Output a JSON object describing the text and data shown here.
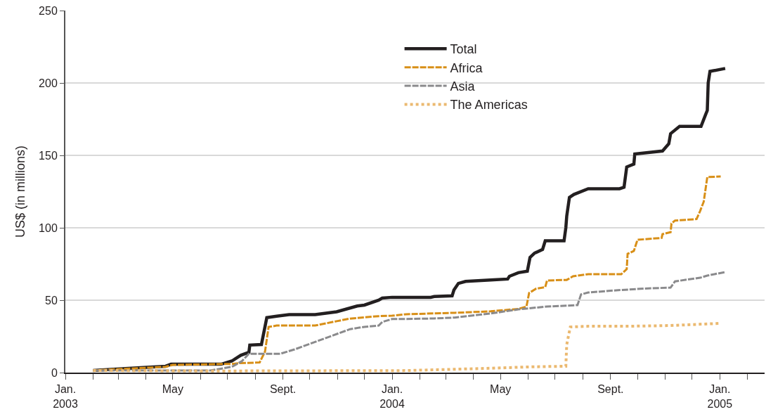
{
  "chart_data": {
    "type": "line",
    "ylabel": "US$ (in millions)",
    "xlim": [
      "2003-01-01",
      "2005-02-20"
    ],
    "ylim": [
      0,
      250
    ],
    "yticks": [
      0,
      50,
      100,
      150,
      200,
      250
    ],
    "xticks": [
      {
        "value": "2003-01-01",
        "label": "Jan.\n2003"
      },
      {
        "value": "2003-02-01",
        "label": null
      },
      {
        "value": "2003-03-01",
        "label": null
      },
      {
        "value": "2003-04-01",
        "label": null
      },
      {
        "value": "2003-05-01",
        "label": "May"
      },
      {
        "value": "2003-06-01",
        "label": null
      },
      {
        "value": "2003-07-01",
        "label": null
      },
      {
        "value": "2003-08-01",
        "label": null
      },
      {
        "value": "2003-09-01",
        "label": "Sept."
      },
      {
        "value": "2003-10-01",
        "label": null
      },
      {
        "value": "2003-11-01",
        "label": null
      },
      {
        "value": "2003-12-01",
        "label": null
      },
      {
        "value": "2004-01-01",
        "label": "Jan.\n2004"
      },
      {
        "value": "2004-02-01",
        "label": null
      },
      {
        "value": "2004-03-01",
        "label": null
      },
      {
        "value": "2004-04-01",
        "label": null
      },
      {
        "value": "2004-05-01",
        "label": "May"
      },
      {
        "value": "2004-06-01",
        "label": null
      },
      {
        "value": "2004-07-01",
        "label": null
      },
      {
        "value": "2004-08-01",
        "label": null
      },
      {
        "value": "2004-09-01",
        "label": "Sept."
      },
      {
        "value": "2004-10-01",
        "label": null
      },
      {
        "value": "2004-11-01",
        "label": null
      },
      {
        "value": "2004-12-01",
        "label": null
      },
      {
        "value": "2005-01-01",
        "label": "Jan.\n2005"
      },
      {
        "value": "2005-02-01",
        "label": null
      }
    ],
    "grid": "y",
    "legend": "top",
    "marker": "none",
    "series": [
      {
        "name": "Total",
        "color": "#231f20",
        "line_style": "solid",
        "x": [
          "2003-02-01",
          "2003-02-27",
          "2003-03-26",
          "2003-04-23",
          "2003-04-29",
          "2003-06-24",
          "2003-07-06",
          "2003-07-16",
          "2003-07-25",
          "2003-07-26",
          "2003-08-08",
          "2003-08-14",
          "2003-08-25",
          "2003-09-08",
          "2003-10-07",
          "2003-10-31",
          "2003-11-23",
          "2003-12-01",
          "2003-12-17",
          "2003-12-21",
          "2004-01-01",
          "2004-02-13",
          "2004-02-17",
          "2004-03-08",
          "2004-03-10",
          "2004-03-15",
          "2004-03-23",
          "2004-04-20",
          "2004-05-09",
          "2004-05-11",
          "2004-05-21",
          "2004-05-31",
          "2004-06-03",
          "2004-06-08",
          "2004-06-17",
          "2004-06-20",
          "2004-07-11",
          "2004-07-13",
          "2004-07-14",
          "2004-07-17",
          "2004-07-22",
          "2004-08-07",
          "2004-09-11",
          "2004-09-16",
          "2004-09-19",
          "2004-09-27",
          "2004-09-28",
          "2004-10-29",
          "2004-11-05",
          "2004-11-07",
          "2004-11-17",
          "2004-12-11",
          "2004-12-16",
          "2004-12-18",
          "2004-12-19",
          "2004-12-21",
          "2005-01-07"
        ],
        "values": [
          1.5,
          2.4,
          3.4,
          4.4,
          5.8,
          5.8,
          8,
          12,
          14,
          19,
          19.4,
          38,
          39,
          40,
          40,
          42,
          46,
          46.6,
          50,
          51.5,
          52,
          52,
          52.5,
          53,
          57,
          61.6,
          63,
          64,
          64.6,
          66.5,
          69,
          70,
          79.6,
          82.5,
          85,
          91,
          91,
          100,
          108,
          121,
          123,
          127,
          127,
          128,
          142,
          144,
          151,
          153,
          158,
          165,
          170,
          170,
          178,
          181,
          200,
          208,
          210
        ]
      },
      {
        "name": "Africa",
        "color": "#d88f17",
        "line_style": "dashed",
        "x": [
          "2003-02-01",
          "2003-04-23",
          "2003-05-01",
          "2003-07-06",
          "2003-07-14",
          "2003-08-06",
          "2003-08-12",
          "2003-08-16",
          "2003-08-25",
          "2003-10-07",
          "2003-10-31",
          "2003-11-15",
          "2003-12-17",
          "2004-01-01",
          "2004-01-17",
          "2004-03-11",
          "2004-04-20",
          "2004-05-21",
          "2004-05-30",
          "2004-06-02",
          "2004-06-10",
          "2004-06-20",
          "2004-06-22",
          "2004-07-14",
          "2004-07-21",
          "2004-08-07",
          "2004-09-13",
          "2004-09-19",
          "2004-09-20",
          "2004-09-27",
          "2004-10-01",
          "2004-10-28",
          "2004-10-29",
          "2004-11-07",
          "2004-11-08",
          "2004-11-12",
          "2004-12-06",
          "2004-12-10",
          "2004-12-14",
          "2004-12-18",
          "2005-01-02"
        ],
        "values": [
          1.5,
          4,
          5.3,
          6,
          6.5,
          7,
          14.5,
          31.5,
          32.5,
          32.5,
          35.5,
          37.3,
          39,
          39.3,
          40.3,
          41.3,
          42.3,
          44,
          45.6,
          55,
          58,
          59,
          63.6,
          64,
          66.5,
          68,
          68,
          71.4,
          82,
          84,
          91.7,
          93,
          95.6,
          97,
          103,
          105,
          106,
          111.6,
          118,
          135,
          135.4
        ]
      },
      {
        "name": "Asia",
        "color": "#8a8a8c",
        "line_style": "dashed",
        "x": [
          "2003-02-01",
          "2003-06-12",
          "2003-07-06",
          "2003-07-17",
          "2003-07-25",
          "2003-08-29",
          "2003-09-14",
          "2003-10-15",
          "2003-11-15",
          "2003-12-01",
          "2003-12-17",
          "2003-12-21",
          "2004-01-01",
          "2004-01-17",
          "2004-02-17",
          "2004-03-11",
          "2004-04-20",
          "2004-05-21",
          "2004-06-22",
          "2004-07-26",
          "2004-07-30",
          "2004-08-07",
          "2004-09-07",
          "2004-10-08",
          "2004-11-07",
          "2004-11-12",
          "2004-12-10",
          "2004-12-18",
          "2005-01-07"
        ],
        "values": [
          1.5,
          1.5,
          4,
          7.8,
          13,
          13,
          16,
          23,
          30,
          31.6,
          32.5,
          35,
          37,
          37,
          37.4,
          38,
          40.8,
          43.7,
          45.6,
          46.6,
          54,
          55.3,
          56.8,
          58,
          58.7,
          63,
          65.5,
          67,
          69.4
        ]
      },
      {
        "name": "The Americas",
        "color": "#ebb970",
        "line_style": "dotted",
        "x": [
          "2003-02-01",
          "2003-06-12",
          "2004-01-17",
          "2004-04-20",
          "2004-06-05",
          "2004-07-13",
          "2004-07-14",
          "2004-07-18",
          "2004-08-07",
          "2004-09-19",
          "2004-11-07",
          "2005-01-01"
        ],
        "values": [
          1.5,
          1.1,
          1.4,
          3,
          4,
          4.4,
          19.4,
          31.5,
          32,
          32,
          32.5,
          34
        ]
      }
    ]
  }
}
